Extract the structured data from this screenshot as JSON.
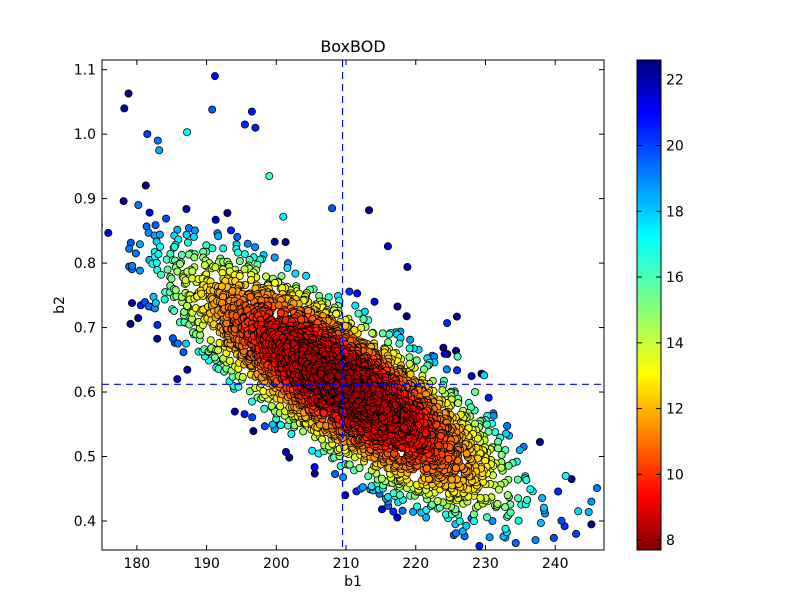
{
  "chart_data": {
    "type": "scatter",
    "title": "BoxBOD",
    "xlabel": "b1",
    "ylabel": "b2",
    "xlim": [
      175,
      247
    ],
    "ylim": [
      0.355,
      1.115
    ],
    "xticks": [
      180,
      190,
      200,
      210,
      220,
      230,
      240
    ],
    "yticks": [
      0.4,
      0.5,
      0.6,
      0.7,
      0.8,
      0.9,
      1.0,
      1.1
    ],
    "xtick_labels": [
      "180",
      "190",
      "200",
      "210",
      "220",
      "230",
      "240"
    ],
    "ytick_labels": [
      "0.4",
      "0.5",
      "0.6",
      "0.7",
      "0.8",
      "0.9",
      "1.0",
      "1.1"
    ],
    "reference_lines": {
      "x": 209.5,
      "y": 0.612,
      "style": "dashed",
      "color": "#0000ff"
    },
    "colormap": "jet_reversed",
    "colorbar": {
      "range": [
        7.7,
        22.6
      ],
      "ticks": [
        8,
        10,
        12,
        14,
        16,
        18,
        20,
        22
      ],
      "tick_labels": [
        "8",
        "10",
        "12",
        "14",
        "16",
        "18",
        "20",
        "22"
      ]
    },
    "grid": false,
    "cloud": {
      "center": [
        209.5,
        0.612
      ],
      "direction": [
        1,
        -0.0066
      ],
      "spread_major": 11.5,
      "spread_minor": 0.055,
      "count": 4200
    },
    "outliers": [
      {
        "x": 178.8,
        "y": 1.063,
        "c": 22.4
      },
      {
        "x": 178.2,
        "y": 1.04,
        "c": 22.0
      },
      {
        "x": 191.2,
        "y": 1.09,
        "c": 20.8
      },
      {
        "x": 196.5,
        "y": 1.035,
        "c": 20.5
      },
      {
        "x": 197.0,
        "y": 1.01,
        "c": 20.3
      },
      {
        "x": 195.5,
        "y": 1.015,
        "c": 20.2
      },
      {
        "x": 190.8,
        "y": 1.038,
        "c": 19.5
      },
      {
        "x": 181.5,
        "y": 1.0,
        "c": 19.8
      },
      {
        "x": 183.0,
        "y": 0.99,
        "c": 19.0
      },
      {
        "x": 183.2,
        "y": 0.975,
        "c": 18.2
      },
      {
        "x": 187.2,
        "y": 1.003,
        "c": 17.0
      },
      {
        "x": 179.3,
        "y": 0.738,
        "c": 22.1
      },
      {
        "x": 182.2,
        "y": 0.732,
        "c": 20.0
      },
      {
        "x": 185.8,
        "y": 0.62,
        "c": 21.5
      },
      {
        "x": 180.2,
        "y": 0.89,
        "c": 19.0
      },
      {
        "x": 181.8,
        "y": 0.805,
        "c": 18.0
      },
      {
        "x": 213.3,
        "y": 0.882,
        "c": 22.5
      },
      {
        "x": 216.0,
        "y": 0.826,
        "c": 21.2
      },
      {
        "x": 218.8,
        "y": 0.794,
        "c": 21.8
      },
      {
        "x": 208.0,
        "y": 0.885,
        "c": 19.5
      },
      {
        "x": 225.9,
        "y": 0.717,
        "c": 22.6
      },
      {
        "x": 224.5,
        "y": 0.707,
        "c": 20.2
      },
      {
        "x": 209.9,
        "y": 0.44,
        "c": 22.2
      },
      {
        "x": 215.8,
        "y": 0.435,
        "c": 20.0
      },
      {
        "x": 214.8,
        "y": 0.442,
        "c": 19.0
      },
      {
        "x": 243.0,
        "y": 0.38,
        "c": 19.8
      },
      {
        "x": 246.0,
        "y": 0.451,
        "c": 19.0
      },
      {
        "x": 245.2,
        "y": 0.43,
        "c": 18.5
      },
      {
        "x": 244.8,
        "y": 0.414,
        "c": 18.0
      },
      {
        "x": 243.3,
        "y": 0.415,
        "c": 17.5
      },
      {
        "x": 241.5,
        "y": 0.47,
        "c": 17.0
      },
      {
        "x": 229.8,
        "y": 0.626,
        "c": 17.6
      },
      {
        "x": 231.0,
        "y": 0.4,
        "c": 18.6
      },
      {
        "x": 228.0,
        "y": 0.404,
        "c": 19.2
      },
      {
        "x": 226.0,
        "y": 0.655,
        "c": 16.0
      },
      {
        "x": 228.5,
        "y": 0.6,
        "c": 15.5
      },
      {
        "x": 201.0,
        "y": 0.872,
        "c": 17.2
      },
      {
        "x": 199.0,
        "y": 0.935,
        "c": 16.0
      }
    ]
  }
}
